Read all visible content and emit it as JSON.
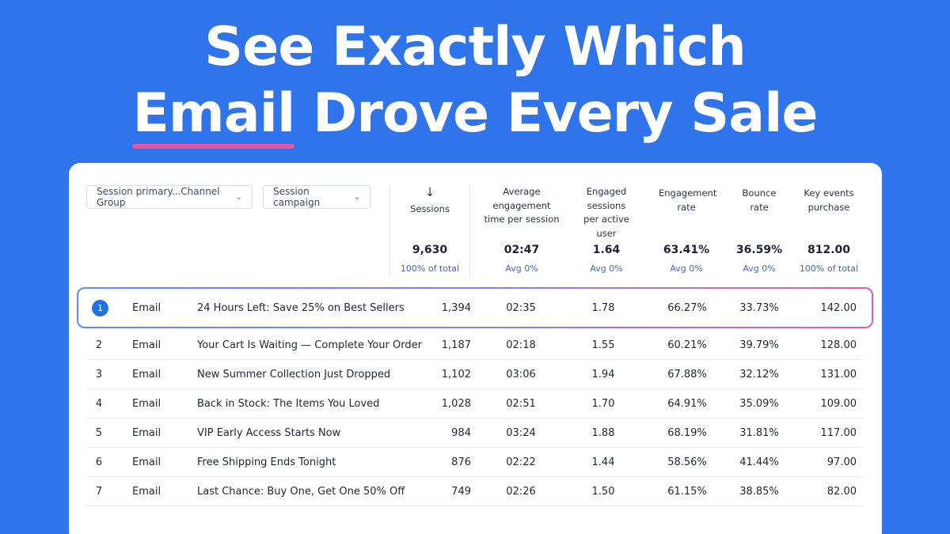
{
  "headline": {
    "line1": "See Exactly Which",
    "accent_word": "Email",
    "line2_rest": " Drove Every Sale",
    "accent_color": "#e8559a",
    "background_color": "#2f74ea"
  },
  "filters": {
    "dimension1": "Session primary...Channel Group",
    "dimension2": "Session campaign"
  },
  "columns": [
    {
      "label": "Sessions",
      "total": "9,630",
      "sub": "100% of total",
      "sorted": true
    },
    {
      "label": "Average engagement time per session",
      "total": "02:47",
      "sub": "Avg 0%"
    },
    {
      "label": "Engaged sessions per active user",
      "total": "1.64",
      "sub": "Avg 0%"
    },
    {
      "label": "Engagement rate",
      "total": "63.41%",
      "sub": "Avg 0%"
    },
    {
      "label": "Bounce rate",
      "total": "36.59%",
      "sub": "Avg 0%"
    },
    {
      "label": "Key events purchase",
      "total": "812.00",
      "sub": "100% of total"
    }
  ],
  "rows": [
    {
      "idx": "1",
      "channel": "Email",
      "campaign": "24 Hours Left: Save 25% on Best Sellers",
      "sessions": "1,394",
      "avg_time": "02:35",
      "engaged": "1.78",
      "eng_rate": "66.27%",
      "bounce": "33.73%",
      "purchase": "142.00"
    },
    {
      "idx": "2",
      "channel": "Email",
      "campaign": "Your Cart Is Waiting — Complete Your Order",
      "sessions": "1,187",
      "avg_time": "02:18",
      "engaged": "1.55",
      "eng_rate": "60.21%",
      "bounce": "39.79%",
      "purchase": "128.00"
    },
    {
      "idx": "3",
      "channel": "Email",
      "campaign": "New Summer Collection Just Dropped",
      "sessions": "1,102",
      "avg_time": "03:06",
      "engaged": "1.94",
      "eng_rate": "67.88%",
      "bounce": "32.12%",
      "purchase": "131.00"
    },
    {
      "idx": "4",
      "channel": "Email",
      "campaign": "Back in Stock: The Items You Loved",
      "sessions": "1,028",
      "avg_time": "02:51",
      "engaged": "1.70",
      "eng_rate": "64.91%",
      "bounce": "35.09%",
      "purchase": "109.00"
    },
    {
      "idx": "5",
      "channel": "Email",
      "campaign": "VIP Early Access Starts Now",
      "sessions": "984",
      "avg_time": "03:24",
      "engaged": "1.88",
      "eng_rate": "68.19%",
      "bounce": "31.81%",
      "purchase": "117.00"
    },
    {
      "idx": "6",
      "channel": "Email",
      "campaign": "Free Shipping Ends Tonight",
      "sessions": "876",
      "avg_time": "02:22",
      "engaged": "1.44",
      "eng_rate": "58.56%",
      "bounce": "41.44%",
      "purchase": "97.00"
    },
    {
      "idx": "7",
      "channel": "Email",
      "campaign": "Last Chance: Buy One, Get One 50% Off",
      "sessions": "749",
      "avg_time": "02:26",
      "engaged": "1.50",
      "eng_rate": "61.15%",
      "bounce": "38.85%",
      "purchase": "82.00"
    }
  ]
}
